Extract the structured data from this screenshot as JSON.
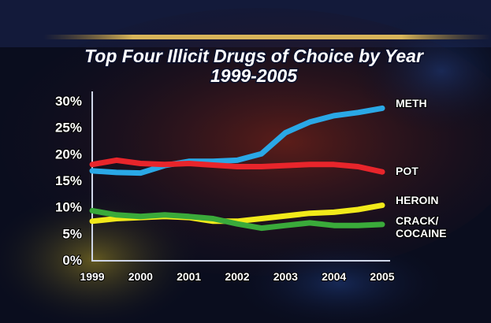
{
  "chart_data": {
    "type": "line",
    "title": "Top Four Illicit Drugs of Choice by Year",
    "subtitle": "1999-2005",
    "xlabel": "",
    "ylabel": "",
    "x": [
      1999,
      1999.5,
      2000,
      2000.5,
      2001,
      2001.5,
      2002,
      2002.5,
      2003,
      2003.5,
      2004,
      2004.5,
      2005
    ],
    "x_tick_labels": [
      "1999",
      "2000",
      "2001",
      "2002",
      "2003",
      "2004",
      "2005"
    ],
    "x_tick_values": [
      1999,
      2000,
      2001,
      2002,
      2003,
      2004,
      2005
    ],
    "y_tick_labels": [
      "0%",
      "5%",
      "10%",
      "15%",
      "20%",
      "25%",
      "30%"
    ],
    "y_tick_values": [
      0,
      5,
      10,
      15,
      20,
      25,
      30
    ],
    "xlim": [
      1999,
      2005
    ],
    "ylim": [
      0,
      30
    ],
    "grid": false,
    "legend": "none",
    "series": [
      {
        "name": "METH",
        "color": "#2aa8e6",
        "values": [
          16.8,
          16.5,
          16.4,
          17.8,
          18.6,
          18.6,
          18.8,
          20.0,
          24.0,
          26.0,
          27.2,
          27.8,
          28.6
        ]
      },
      {
        "name": "POT",
        "color": "#e8252b",
        "values": [
          18.0,
          18.8,
          18.2,
          18.0,
          18.2,
          17.9,
          17.6,
          17.6,
          17.8,
          18.0,
          18.0,
          17.6,
          16.6
        ]
      },
      {
        "name": "HEROIN",
        "color": "#f2ea1a",
        "values": [
          7.3,
          7.8,
          8.0,
          8.2,
          8.0,
          7.3,
          7.3,
          7.8,
          8.3,
          8.8,
          9.0,
          9.5,
          10.3
        ]
      },
      {
        "name": "CRACK/\nCOCAINE",
        "color": "#3aaa3a",
        "values": [
          9.3,
          8.5,
          8.2,
          8.5,
          8.2,
          7.8,
          6.8,
          6.0,
          6.5,
          7.0,
          6.5,
          6.5,
          6.7
        ]
      }
    ]
  }
}
